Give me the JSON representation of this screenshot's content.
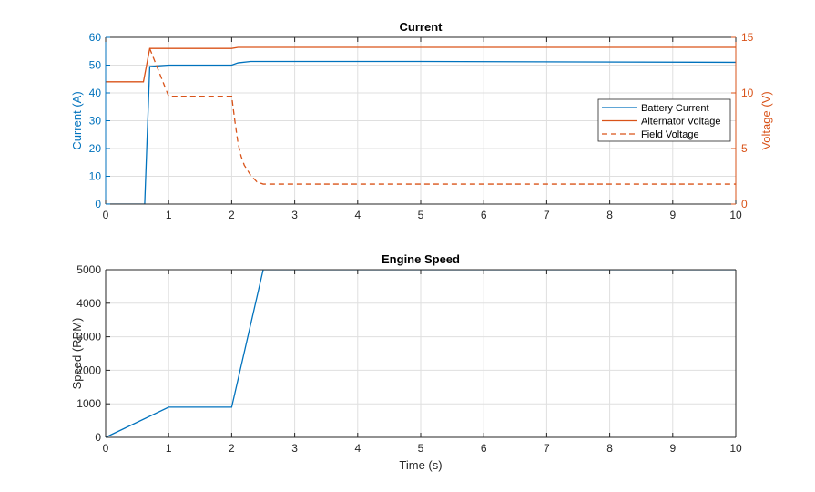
{
  "colors": {
    "blue": "#0072BD",
    "orange": "#D95319",
    "axis": "#262626",
    "grid": "#DFDFDF"
  },
  "chart_data": [
    {
      "type": "line",
      "title": "Current",
      "xlim": [
        0,
        10
      ],
      "xticks": [
        0,
        1,
        2,
        3,
        4,
        5,
        6,
        7,
        8,
        9,
        10
      ],
      "ylabel": "Current (A)",
      "ylim": [
        0,
        60
      ],
      "yticks": [
        0,
        10,
        20,
        30,
        40,
        50,
        60
      ],
      "ylabel_right": "Voltage (V)",
      "ylim_right": [
        0,
        15
      ],
      "yticks_right": [
        0,
        5,
        10,
        15
      ],
      "grid": true,
      "legend": "right",
      "series": [
        {
          "name": "Battery Current",
          "axis": "left",
          "style": "solid",
          "color": "#0072BD",
          "x": [
            0,
            0.62,
            0.7,
            1.0,
            2.0,
            2.1,
            2.3,
            5,
            10
          ],
          "y": [
            0,
            0,
            49.5,
            50.0,
            50.0,
            50.8,
            51.3,
            51.3,
            51.0
          ]
        },
        {
          "name": "Alternator Voltage",
          "axis": "right",
          "style": "solid",
          "color": "#D95319",
          "x": [
            0,
            0.6,
            0.7,
            2.0,
            2.1,
            10
          ],
          "y": [
            11.0,
            11.0,
            14.0,
            14.0,
            14.1,
            14.1
          ]
        },
        {
          "name": "Field Voltage",
          "axis": "right",
          "style": "dashed",
          "color": "#D95319",
          "x": [
            0.7,
            1.0,
            2.0,
            2.05,
            2.1,
            2.15,
            2.2,
            2.3,
            2.4,
            2.5,
            10
          ],
          "y": [
            14.0,
            9.7,
            9.7,
            7.5,
            5.5,
            4.3,
            3.5,
            2.6,
            2.0,
            1.8,
            1.8
          ]
        }
      ]
    },
    {
      "type": "line",
      "title": "Engine Speed",
      "xlabel": "Time (s)",
      "xlim": [
        0,
        10
      ],
      "xticks": [
        0,
        1,
        2,
        3,
        4,
        5,
        6,
        7,
        8,
        9,
        10
      ],
      "ylabel": "Speed (RPM)",
      "ylim": [
        0,
        5000
      ],
      "yticks": [
        0,
        1000,
        2000,
        3000,
        4000,
        5000
      ],
      "grid": true,
      "series": [
        {
          "axis": "left",
          "style": "solid",
          "color": "#0072BD",
          "x": [
            0,
            1,
            2,
            2.5,
            10
          ],
          "y": [
            0,
            900,
            900,
            5000,
            5000
          ]
        }
      ]
    }
  ]
}
